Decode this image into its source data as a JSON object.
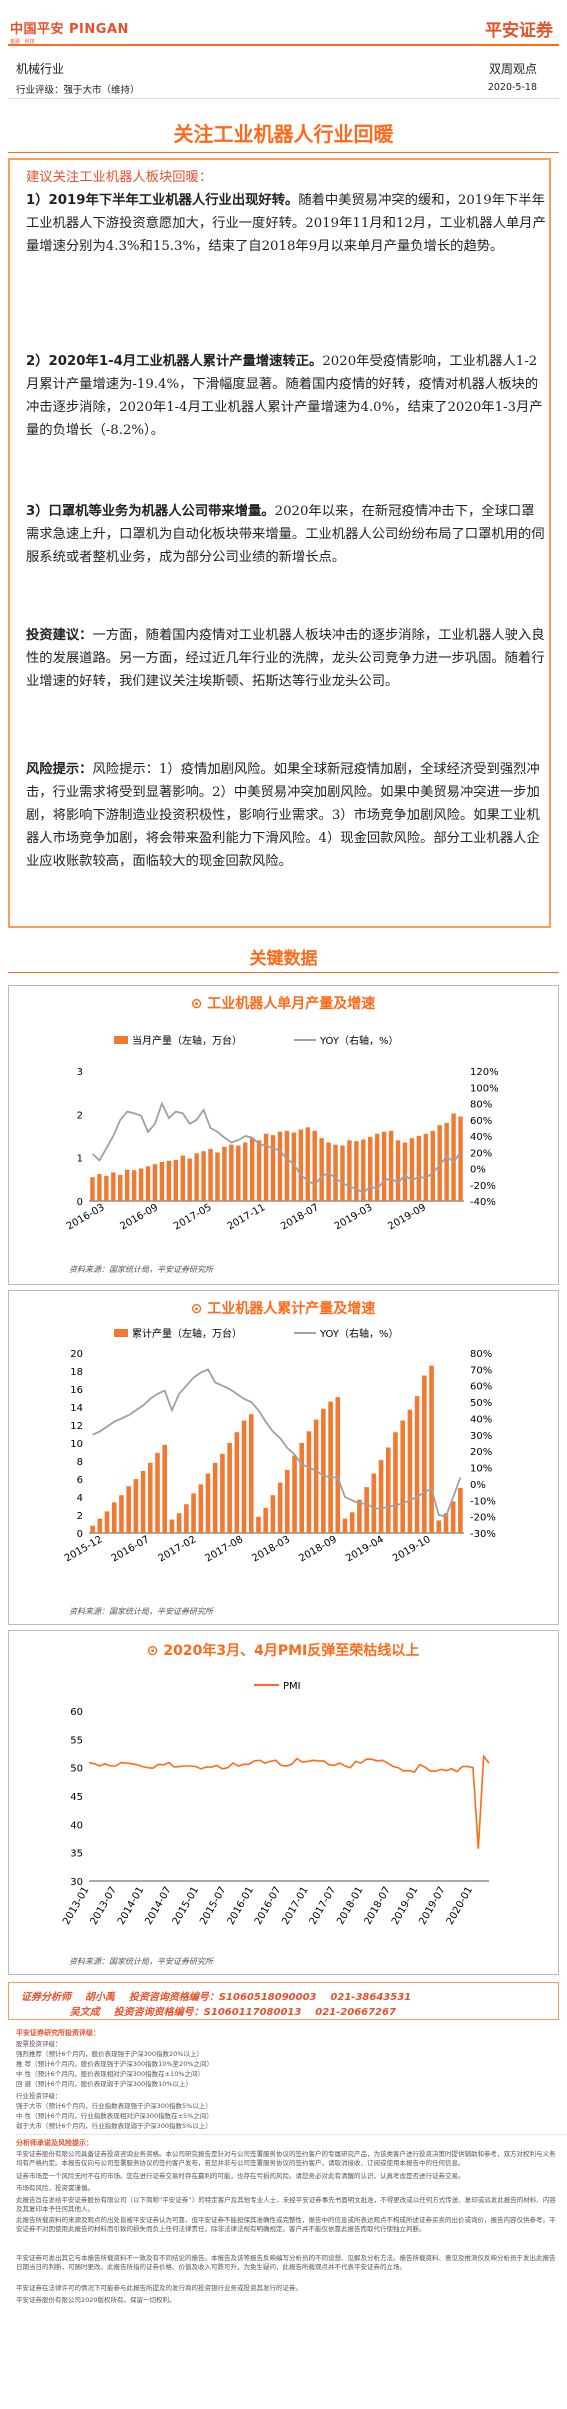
{
  "header": {
    "logo_text": "中国平安 PINGAN",
    "logo_sub": "金融 · 科技",
    "brand": "平安证券",
    "industry": "机械行业",
    "report_type": "双周观点",
    "rating": "行业评级：强于大市（维持）",
    "date": "2020-5-18"
  },
  "title": "关注工业机器人行业回暖",
  "summary": {
    "intro": "建议关注工业机器人板块回暖：",
    "p1_head": "1）2019年下半年工业机器人行业出现好转。",
    "p1_body": "随着中美贸易冲突的缓和，2019年下半年工业机器人下游投资意愿加大，行业一度好转。2019年11月和12月，工业机器人单月产量增速分别为4.3%和15.3%，结束了自2018年9月以来单月产量负增长的趋势。",
    "p2_head": "2）2020年1-4月工业机器人累计产量增速转正。",
    "p2_body": "2020年受疫情影响，工业机器人1-2月累计产量增速为-19.4%，下滑幅度显著。随着国内疫情的好转，疫情对机器人板块的冲击逐步消除，2020年1-4月工业机器人累计产量增速为4.0%，结束了2020年1-3月产量的负增长（-8.2%）。",
    "p3_head": "3）口罩机等业务为机器人公司带来增量。",
    "p3_body": "2020年以来，在新冠疫情冲击下，全球口罩需求急速上升，口罩机为自动化板块带来增量。工业机器人公司纷纷布局了口罩机用的伺服系统或者整机业务，成为部分公司业绩的新增长点。",
    "p4_head": "投资建议：",
    "p4_body": "一方面，随着国内疫情对工业机器人板块冲击的逐步消除，工业机器人驶入良性的发展道路。另一方面，经过近几年行业的洗牌，龙头公司竞争力进一步巩固。随着行业增速的好转，我们建议关注埃斯顿、拓斯达等行业龙头公司。",
    "p5_head": "风险提示：",
    "p5_body": "风险提示：1）疫情加剧风险。如果全球新冠疫情加剧，全球经济受到强烈冲击，行业需求将受到显著影响。2）中美贸易冲突加剧风险。如果中美贸易冲突进一步加剧，将影响下游制造业投资积极性，影响行业需求。3）市场竞争加剧风险。如果工业机器人市场竞争加剧，将会带来盈利能力下滑风险。4）现金回款风险。部分工业机器人企业应收账款较高，面临较大的现金回款风险。"
  },
  "key_data_title": "关键数据",
  "colors": {
    "accent": "#ff6a1a",
    "bar": "#f07a32",
    "yoy_line": "#a0a0a0",
    "pmi_line": "#ff6a1a"
  },
  "chart_data": [
    {
      "type": "bar",
      "title": "工业机器人单月产量及增速",
      "source": "资料来源：国家统计局，平安证券研究所",
      "series": [
        {
          "name": "当月产量（左轴，万台）",
          "kind": "bar",
          "axis": "left",
          "values": [
            0.55,
            0.62,
            0.58,
            0.66,
            0.6,
            0.72,
            0.71,
            0.75,
            0.8,
            0.85,
            0.9,
            0.93,
            0.95,
            1.05,
            0.98,
            1.1,
            1.15,
            1.2,
            1.12,
            1.25,
            1.3,
            1.28,
            1.35,
            1.45,
            1.4,
            1.55,
            1.52,
            1.6,
            1.62,
            1.58,
            1.65,
            1.7,
            1.62,
            1.45,
            1.35,
            1.3,
            1.28,
            1.4,
            1.38,
            1.42,
            1.48,
            1.55,
            1.6,
            1.62,
            1.4,
            1.35,
            1.45,
            1.5,
            1.55,
            1.62,
            1.75,
            1.8,
            2.02,
            1.95
          ]
        },
        {
          "name": "YOY（右轴，%）",
          "kind": "line",
          "axis": "right",
          "values": [
            18,
            10,
            25,
            40,
            60,
            70,
            68,
            65,
            45,
            55,
            80,
            62,
            70,
            68,
            55,
            60,
            72,
            50,
            45,
            38,
            32,
            35,
            40,
            38,
            30,
            28,
            25,
            22,
            12,
            5,
            -8,
            -15,
            -20,
            -10,
            -5,
            -12,
            -18,
            -22,
            -25,
            -30,
            -22,
            -25,
            -15,
            -12,
            -18,
            -8,
            -15,
            -10,
            -12,
            -5,
            4,
            15,
            8,
            20
          ]
        }
      ],
      "x_tick_labels": [
        "2016-03",
        "2016-09",
        "2017-05",
        "2017-11",
        "2018-07",
        "2019-03",
        "2019-09"
      ],
      "ylim_left": [
        0,
        3
      ],
      "yticks_left": [
        "0",
        "1",
        "2",
        "3"
      ],
      "ylim_right": [
        -40,
        120
      ],
      "yticks_right": [
        "-40%",
        "-20%",
        "0%",
        "20%",
        "40%",
        "60%",
        "80%",
        "100%",
        "120%"
      ],
      "legend": "top"
    },
    {
      "type": "bar",
      "title": "工业机器人累计产量及增速",
      "source": "资料来源：国家统计局，平安证券研究所",
      "series": [
        {
          "name": "累计产量（左轴，万台）",
          "kind": "bar",
          "axis": "left",
          "values": [
            0.8,
            1.6,
            2.4,
            3.4,
            4.2,
            5.2,
            6.0,
            6.9,
            7.8,
            8.9,
            9.8,
            1.5,
            2.2,
            3.2,
            4.4,
            5.4,
            6.6,
            7.8,
            8.8,
            10.0,
            11.2,
            12.5,
            13.2,
            1.8,
            2.8,
            4.2,
            5.6,
            7.0,
            8.6,
            10.0,
            11.3,
            12.6,
            13.8,
            14.6,
            15.1,
            1.6,
            2.3,
            3.7,
            5.1,
            6.6,
            8.1,
            9.5,
            11.2,
            12.5,
            13.7,
            15.2,
            17.5,
            18.6,
            1.4,
            2.2,
            3.5,
            5.0
          ]
        },
        {
          "name": "YOY（右轴，%）",
          "kind": "line",
          "axis": "right",
          "values": [
            30,
            32,
            35,
            38,
            40,
            42,
            45,
            48,
            52,
            55,
            57,
            45,
            55,
            60,
            65,
            68,
            70,
            62,
            60,
            58,
            55,
            52,
            50,
            45,
            38,
            32,
            28,
            22,
            18,
            12,
            10,
            8,
            5,
            4,
            4,
            -8,
            -10,
            -12,
            -12,
            -15,
            -15,
            -14,
            -13,
            -12,
            -10,
            -8,
            -5,
            -3,
            -19,
            -20,
            -8,
            4
          ]
        }
      ],
      "x_tick_labels": [
        "2015-12",
        "2016-07",
        "2017-02",
        "2017-08",
        "2018-03",
        "2018-09",
        "2019-04",
        "2019-10"
      ],
      "ylim_left": [
        0,
        20
      ],
      "yticks_left": [
        "0",
        "2",
        "4",
        "6",
        "8",
        "10",
        "12",
        "14",
        "16",
        "18",
        "20"
      ],
      "ylim_right": [
        -30,
        80
      ],
      "yticks_right": [
        "-30%",
        "-20%",
        "-10%",
        "0%",
        "10%",
        "20%",
        "30%",
        "40%",
        "50%",
        "60%",
        "70%",
        "80%"
      ],
      "legend": "top"
    },
    {
      "type": "line",
      "title": "2020年3月、4月PMI反弹至荣枯线以上",
      "source": "资料来源：国家统计局，平安证券研究所",
      "series": [
        {
          "name": "PMI",
          "kind": "line",
          "values": [
            50.9,
            50.7,
            50.3,
            50.7,
            50.3,
            50.3,
            50.9,
            50.8,
            50.7,
            50.5,
            50.2,
            50.0,
            49.9,
            50.6,
            50.5,
            50.9,
            50.1,
            50.2,
            50.3,
            50.3,
            50.2,
            49.8,
            50.1,
            50.1,
            50.4,
            49.8,
            50.0,
            50.8,
            50.3,
            50.6,
            50.6,
            51.2,
            51.3,
            50.8,
            51.1,
            51.3,
            50.4,
            50.3,
            50.6,
            51.6,
            51.0,
            51.1,
            51.3,
            51.2,
            51.2,
            50.5,
            50.4,
            50.8,
            50.3,
            50.0,
            51.1,
            50.8,
            51.5,
            51.5,
            51.2,
            51.3,
            50.8,
            50.2,
            50.0,
            49.4,
            49.5,
            49.2,
            50.5,
            50.1,
            49.4,
            49.4,
            49.7,
            49.5,
            49.8,
            49.3,
            50.2,
            50.2,
            50.0,
            35.7,
            52.0,
            50.8
          ]
        }
      ],
      "x_tick_labels": [
        "2013-01",
        "2013-07",
        "2014-01",
        "2014-07",
        "2015-01",
        "2015-07",
        "2016-01",
        "2016-07",
        "2017-01",
        "2017-07",
        "2018-01",
        "2018-07",
        "2019-01",
        "2019-07",
        "2020-01"
      ],
      "ylim": [
        30,
        60
      ],
      "yticks": [
        "30",
        "35",
        "40",
        "45",
        "50",
        "55",
        "60"
      ],
      "legend": "top"
    }
  ],
  "analyst": {
    "line1": "证券分析师    胡小禹    投资咨询资格编号：S1060518090003    021-38643531",
    "line2": "              吴文成    投资咨询资格编号：S1060117080013    021-20667267"
  },
  "disclaimer": {
    "rating_head": "平安证券研究所投资评级：",
    "stock_head": "股票投资评级：",
    "stock_lines": [
      "强烈推荐（预计6个月内，股价表现强于沪深300指数20%以上）",
      "推 荐（预计6个月内，股价表现强于沪深300指数10%至20%之间）",
      "中 性（预计6个月内，股价表现相对沪深300指数在±10%之间）",
      "回 避（预计6个月内，股价表现弱于沪深300指数10%以上）"
    ],
    "industry_head": "行业投资评级：",
    "industry_lines": [
      "强于大市（预计6个月内，行业指数表现强于沪深300指数5%以上）",
      "中 性（预计6个月内，行业指数表现相对沪深300指数在±5%之间）",
      "弱于大市（预计6个月内，行业指数表现弱于沪深300指数5%以上）"
    ],
    "stmt_head": "分析师承诺及风险提示：",
    "stmt_lines": [
      "平安证券股份有限公司具备证券投资咨询业务资格。本公司研究报告是针对与公司签署服务协议的签约客户的专属研究产品，为该类客户进行投资决策时提供辅助和参考，双方对权利与义务均有严格约定。本报告仅向与公司签署服务协议的签约客户发布，若您并非与公司签署服务协议的签约客户，请取消接收、订阅或使用本报告中的任何信息。",
      "证券市场是一个风险无时不在的市场。您在进行证券交易时存在赢利的可能，也存在亏损的风险。请您务必对此有清醒的认识，认真考虑是否进行证券交易。",
      "市场有风险，投资需谨慎。",
      "此报告旨在发给平安证券股份有限公司（以下简称“平安证券”）的特定客户及其他专业人士，未经平安证券事先书面明文批准，不得更改或以任何方式传送、复印或派发此报告的材料、内容及其复印本予任何其他人。",
      "此报告所载资料的来源及观点的出处皆被平安证券认为可靠，但平安证券不能担保其准确性或完整性，报告中的信息或所表达观点不构成所述证券买卖的出价或询价，报告内容仅供参考。平安证券不对因使用此报告的材料而引致的损失而负上任何法律责任，除非法律法规有明确规定。客户并不能仅依靠此报告而取代行使独立判断。",
      "平安证券可发出其它与本报告所载资料不一致及有不同结论的报告。本报告及该等报告反映编写分析员的不同设想、见解及分析方法。报告所载资料、意见及推测仅反映分析员于发出此报告日期当日的判断，可随时更改。此报告所指的证券价格、价值及收入可跌可升。为免生疑问，此报告所载观点并不代表平安证券的立场。",
      "平安证券在法律许可的情况下可能参与此报告所提及的发行商的投资银行业务或投资其发行的证券。",
      "平安证券股份有限公司2020版权所有。保留一切权利。"
    ]
  }
}
